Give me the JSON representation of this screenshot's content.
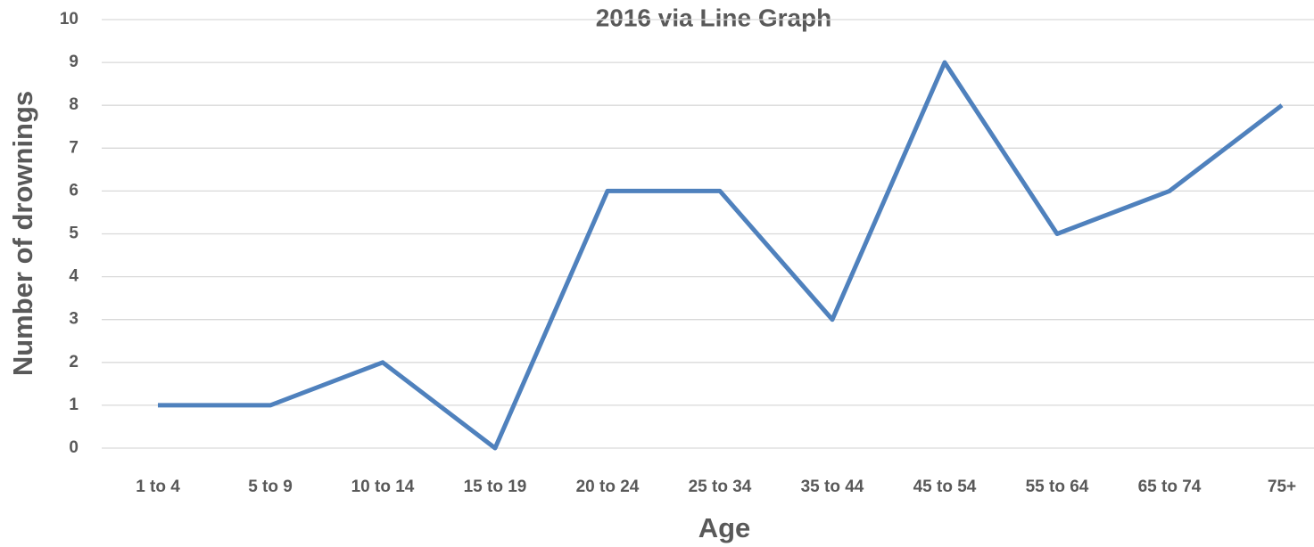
{
  "chart_data": {
    "type": "line",
    "title": "2016 via Line Graph",
    "x_label": "Age",
    "y_label": "Number of drownings",
    "categories": [
      "1 to 4",
      "5 to 9",
      "10 to 14",
      "15 to 19",
      "20 to 24",
      "25 to 34",
      "35 to 44",
      "45 to 54",
      "55 to 64",
      "65 to 74",
      "75+"
    ],
    "series": [
      {
        "name": "Number of drownings",
        "color": "#4f81bd",
        "values": [
          1,
          1,
          2,
          0,
          6,
          6,
          3,
          9,
          5,
          6,
          8
        ]
      }
    ],
    "ylim": [
      0,
      10
    ],
    "yticks": [
      0,
      1,
      2,
      3,
      4,
      5,
      6,
      7,
      8,
      9,
      10
    ],
    "grid": true
  }
}
